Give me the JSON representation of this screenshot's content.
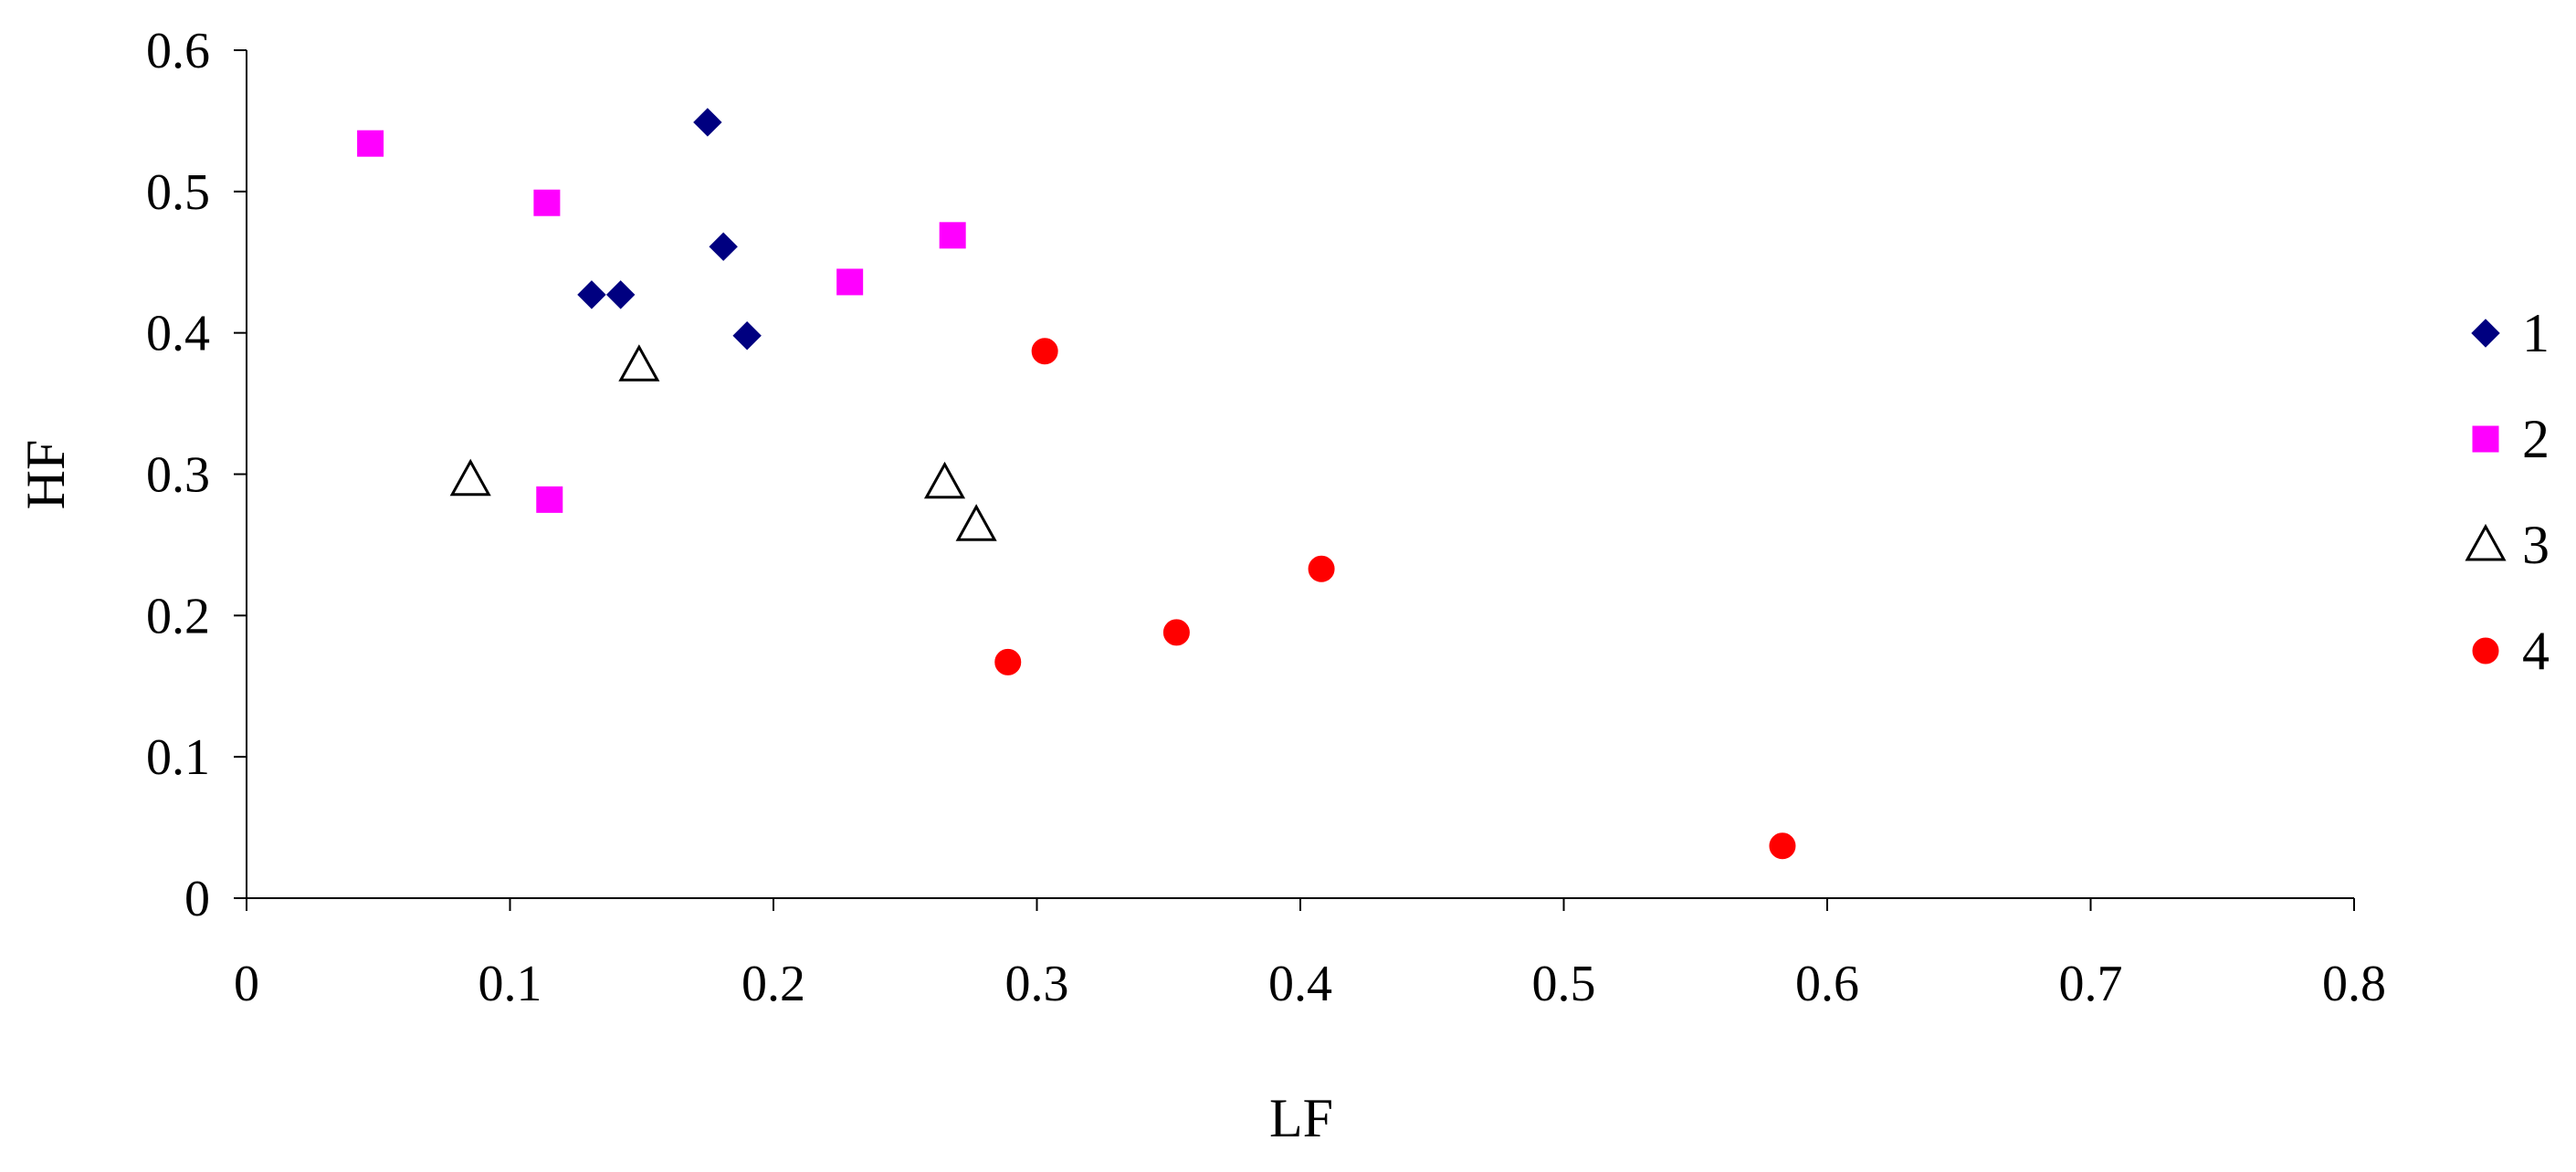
{
  "chart_data": {
    "type": "scatter",
    "title": "",
    "xlabel": "LF",
    "ylabel": "HF",
    "xlim": [
      0,
      0.8
    ],
    "ylim": [
      0,
      0.6
    ],
    "xticks": [
      0,
      0.1,
      0.2,
      0.3,
      0.4,
      0.5,
      0.6,
      0.7,
      0.8
    ],
    "yticks": [
      0,
      0.1,
      0.2,
      0.3,
      0.4,
      0.5,
      0.6
    ],
    "xtick_labels": [
      "0",
      "0.1",
      "0.2",
      "0.3",
      "0.4",
      "0.5",
      "0.6",
      "0.7",
      "0.8"
    ],
    "ytick_labels": [
      "0",
      "0.1",
      "0.2",
      "0.3",
      "0.4",
      "0.5",
      "0.6"
    ],
    "grid": false,
    "legend_position": "right",
    "series": [
      {
        "name": "1",
        "marker": "diamond",
        "color": "#000080",
        "points": [
          {
            "x": 0.175,
            "y": 0.549
          },
          {
            "x": 0.181,
            "y": 0.461
          },
          {
            "x": 0.131,
            "y": 0.427
          },
          {
            "x": 0.142,
            "y": 0.427
          },
          {
            "x": 0.19,
            "y": 0.398
          }
        ]
      },
      {
        "name": "2",
        "marker": "square",
        "color": "#ff00ff",
        "points": [
          {
            "x": 0.047,
            "y": 0.534
          },
          {
            "x": 0.114,
            "y": 0.492
          },
          {
            "x": 0.268,
            "y": 0.469
          },
          {
            "x": 0.229,
            "y": 0.436
          },
          {
            "x": 0.115,
            "y": 0.282
          }
        ]
      },
      {
        "name": "3",
        "marker": "triangle-open",
        "color": "#000000",
        "points": [
          {
            "x": 0.149,
            "y": 0.377
          },
          {
            "x": 0.085,
            "y": 0.296
          },
          {
            "x": 0.265,
            "y": 0.294
          },
          {
            "x": 0.277,
            "y": 0.264
          }
        ]
      },
      {
        "name": "4",
        "marker": "circle",
        "color": "#ff0000",
        "points": [
          {
            "x": 0.303,
            "y": 0.387
          },
          {
            "x": 0.408,
            "y": 0.233
          },
          {
            "x": 0.353,
            "y": 0.188
          },
          {
            "x": 0.289,
            "y": 0.167
          },
          {
            "x": 0.583,
            "y": 0.037
          }
        ]
      }
    ]
  }
}
